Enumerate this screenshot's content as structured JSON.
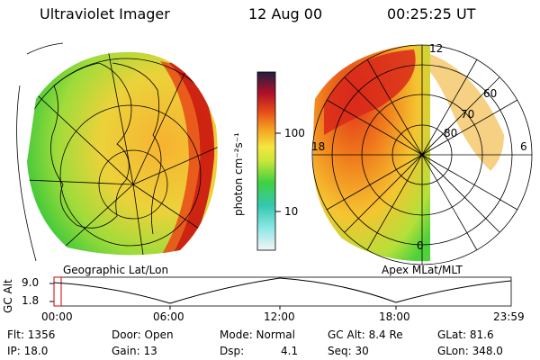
{
  "header": {
    "instrument": "Ultraviolet Imager",
    "date": "12 Aug 00",
    "time": "00:25:25 UT"
  },
  "left_panel": {
    "caption": "Geographic Lat/Lon"
  },
  "right_panel": {
    "caption": "Apex MLat/MLT",
    "lat_labels": [
      "60",
      "70",
      "80"
    ],
    "mlt_labels": [
      "12",
      "18",
      "6",
      "0"
    ]
  },
  "colorbar": {
    "unit": "photon cm⁻²s⁻¹",
    "ticks": [
      "100",
      "10"
    ]
  },
  "altitude_plot": {
    "ylabel": "GC Alt",
    "yticks": [
      "9.0",
      "1.8"
    ],
    "xticks": [
      "00:00",
      "06:00",
      "12:00",
      "18:00",
      "23:59"
    ]
  },
  "info": {
    "flt": "Flt: 1356",
    "ip": "IP: 18.0",
    "door": "Door: Open",
    "gain": "Gain: 13",
    "mode": "Mode: Normal",
    "dsp_label": "Dsp:",
    "dsp_value": "4.1",
    "gc_alt": "GC Alt: 8.4 Re",
    "seq": "Seq: 30",
    "glat": "GLat: 81.6",
    "glon": "GLon: 348.0"
  },
  "colors": {
    "auroral_red": "#cc1a10",
    "mid_orange": "#f2a020",
    "low_yellow": "#e0e63a",
    "green": "#4fd13a",
    "marker_red": "#cc0000"
  }
}
